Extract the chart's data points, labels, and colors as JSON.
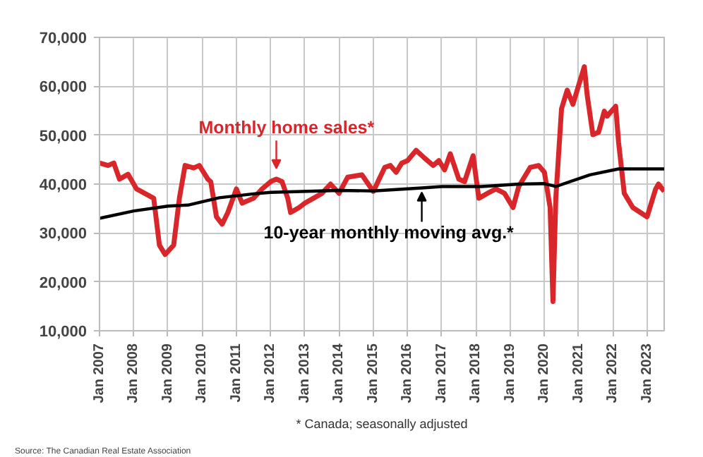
{
  "chart_data": {
    "type": "line",
    "x": [
      "2007-01",
      "2007-04",
      "2007-06",
      "2007-08",
      "2007-11",
      "2008-02",
      "2008-08",
      "2008-10",
      "2008-12",
      "2009-03",
      "2009-05",
      "2009-07",
      "2009-10",
      "2009-12",
      "2010-03",
      "2010-04",
      "2010-06",
      "2010-08",
      "2010-10",
      "2011-01",
      "2011-03",
      "2011-07",
      "2011-10",
      "2012-01",
      "2012-03",
      "2012-05",
      "2012-07",
      "2012-08",
      "2012-11",
      "2013-01",
      "2013-04",
      "2013-07",
      "2013-10",
      "2014-01",
      "2014-04",
      "2014-09",
      "2015-01",
      "2015-05",
      "2015-07",
      "2015-09",
      "2015-11",
      "2016-01",
      "2016-04",
      "2016-07",
      "2016-10",
      "2016-12",
      "2017-02",
      "2017-04",
      "2017-07",
      "2017-09",
      "2017-12",
      "2018-02",
      "2018-05",
      "2018-08",
      "2018-11",
      "2019-02",
      "2019-04",
      "2019-08",
      "2019-11",
      "2020-01",
      "2020-03",
      "2020-04",
      "2020-05",
      "2020-07",
      "2020-09",
      "2020-11",
      "2021-01",
      "2021-03",
      "2021-04",
      "2021-06",
      "2021-08",
      "2021-10",
      "2021-11",
      "2022-02",
      "2022-03",
      "2022-05",
      "2022-08",
      "2023-01",
      "2023-04",
      "2023-05",
      "2023-07"
    ],
    "series": [
      {
        "color": "#d9262b",
        "values": [
          44300,
          43800,
          44300,
          41000,
          42000,
          39000,
          37100,
          27500,
          25600,
          27500,
          37100,
          43800,
          43300,
          43800,
          41000,
          40500,
          33300,
          31800,
          34200,
          39000,
          36100,
          37100,
          39000,
          40500,
          41000,
          40500,
          37100,
          34200,
          35200,
          36100,
          37100,
          38100,
          40000,
          38100,
          41400,
          41900,
          38500,
          43400,
          43800,
          42400,
          44300,
          44800,
          46900,
          45300,
          43800,
          44800,
          42900,
          46200,
          41000,
          40500,
          45800,
          37100,
          38100,
          39000,
          38100,
          35200,
          39500,
          43400,
          43800,
          42400,
          35200,
          16000,
          37100,
          55400,
          59200,
          56300,
          60200,
          64000,
          58200,
          50100,
          50600,
          54900,
          53900,
          55900,
          48600,
          38100,
          35200,
          33300,
          39000,
          40000,
          38500
        ]
      },
      {
        "color": "#000000",
        "x": [
          "2007-01",
          "2008-01",
          "2009-01",
          "2009-08",
          "2010-07",
          "2011-07",
          "2012-01",
          "2014-01",
          "2015-01",
          "2016-06",
          "2017-01",
          "2018-03",
          "2019-04",
          "2020-01",
          "2020-05",
          "2021-05",
          "2022-03",
          "2023-07"
        ],
        "values": [
          33000,
          34500,
          35500,
          35700,
          37200,
          38000,
          38300,
          38700,
          38600,
          39200,
          39500,
          39500,
          40000,
          40100,
          39500,
          41900,
          43100,
          43100
        ]
      }
    ],
    "xlim": [
      "2007-01",
      "2023-07"
    ],
    "xticks": [
      {
        "value": "2007-01",
        "label": "Jan 2007"
      },
      {
        "value": "2008-01",
        "label": "Jan 2008"
      },
      {
        "value": "2009-01",
        "label": "Jan 2009"
      },
      {
        "value": "2010-01",
        "label": "Jan 2010"
      },
      {
        "value": "2011-01",
        "label": "Jan 2011"
      },
      {
        "value": "2012-01",
        "label": "Jan 2012"
      },
      {
        "value": "2013-01",
        "label": "Jan 2013"
      },
      {
        "value": "2014-01",
        "label": "Jan 2014"
      },
      {
        "value": "2015-01",
        "label": "Jan 2015"
      },
      {
        "value": "2016-01",
        "label": "Jan 2016"
      },
      {
        "value": "2017-01",
        "label": "Jan 2017"
      },
      {
        "value": "2018-01",
        "label": "Jan 2018"
      },
      {
        "value": "2019-01",
        "label": "Jan 2019"
      },
      {
        "value": "2020-01",
        "label": "Jan 2020"
      },
      {
        "value": "2021-01",
        "label": "Jan 2021"
      },
      {
        "value": "2022-01",
        "label": "Jan 2022"
      },
      {
        "value": "2023-01",
        "label": "Jan 2023"
      }
    ],
    "ylim": [
      10000,
      70000
    ],
    "yticks": [
      {
        "value": 10000,
        "label": "10,000"
      },
      {
        "value": 20000,
        "label": "20,000"
      },
      {
        "value": 30000,
        "label": "30,000"
      },
      {
        "value": 40000,
        "label": "40,000"
      },
      {
        "value": 50000,
        "label": "50,000"
      },
      {
        "value": 60000,
        "label": "60,000"
      },
      {
        "value": 70000,
        "label": "70,000"
      }
    ],
    "grid": true,
    "annotations": [
      {
        "text": "Monthly home sales*",
        "x": "2012-03",
        "y": 42000
      },
      {
        "text": "10-year monthly moving avg.*",
        "x": "2016-06",
        "y": 39200
      },
      "* Canada; seasonally adjusted",
      "Source: The Canadian Real Estate Association"
    ]
  }
}
